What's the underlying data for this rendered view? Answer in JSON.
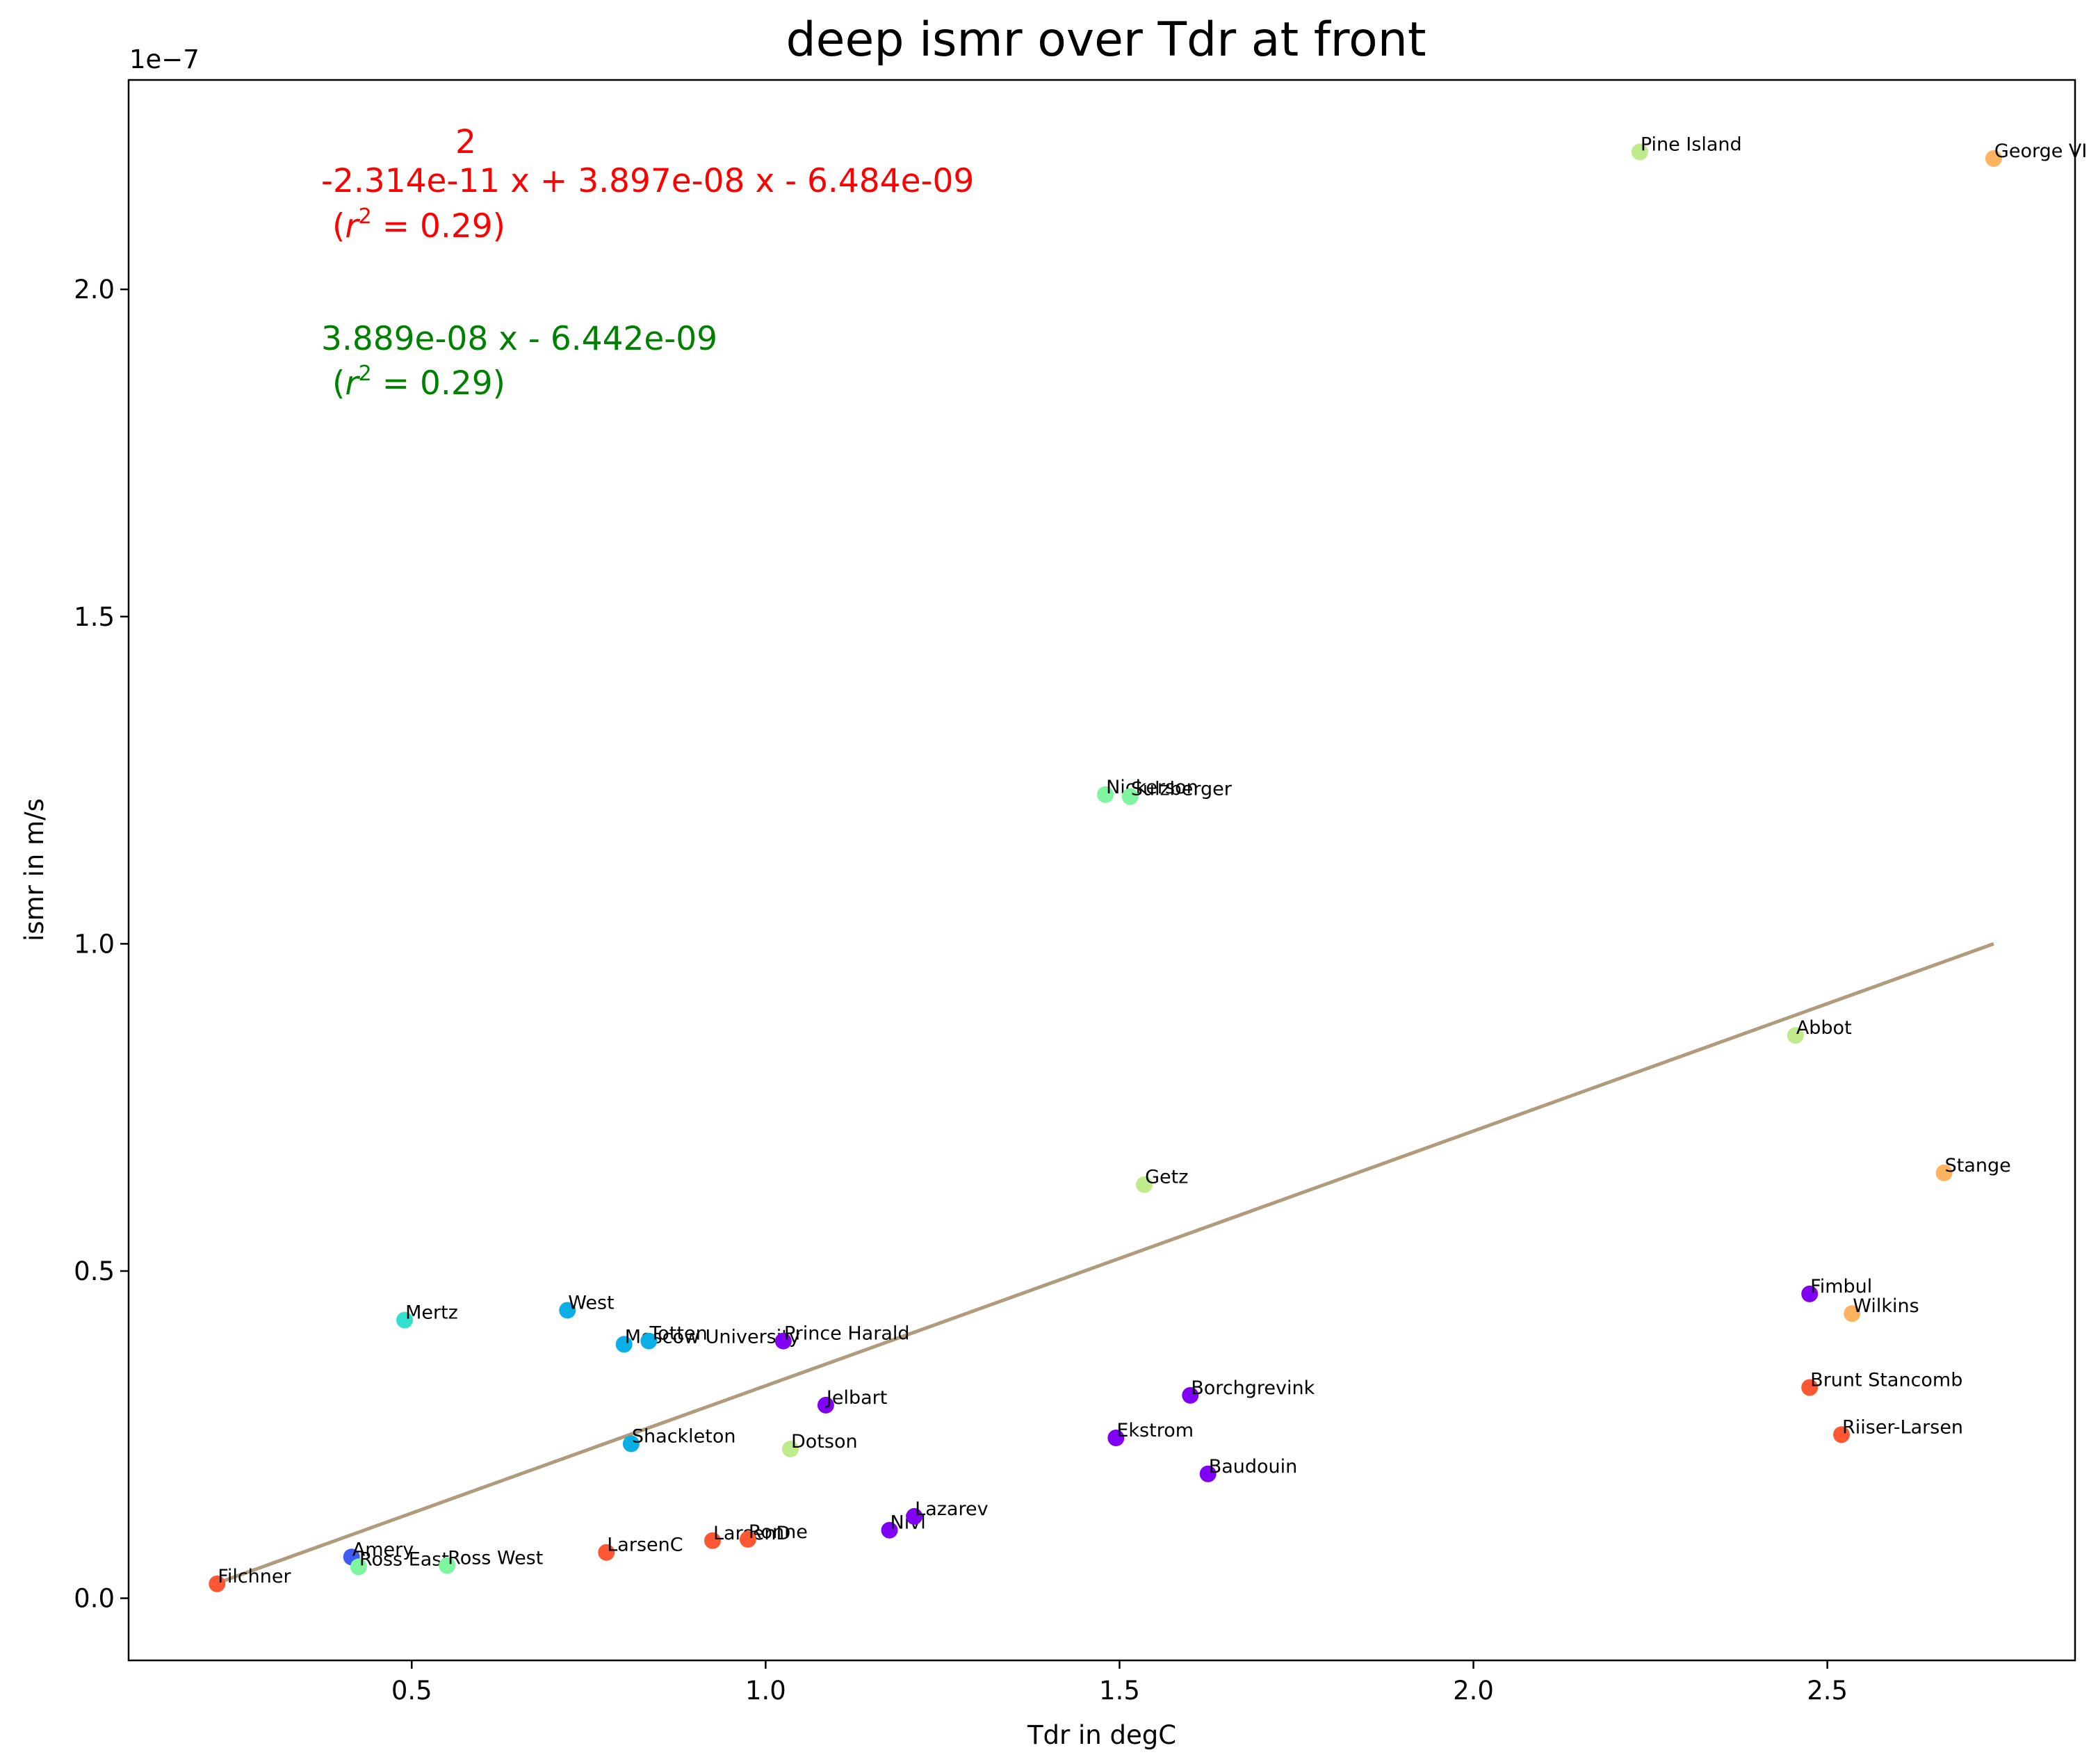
{
  "chart_data": {
    "type": "scatter",
    "title": "deep ismr over Tdr at front",
    "xlabel": "Tdr in degC",
    "ylabel": "ismr in m/s",
    "y_offset_label": "1e−7",
    "xlim": [
      0.1,
      2.85
    ],
    "ylim": [
      -0.095,
      2.32
    ],
    "x_ticks": [
      0.5,
      1.0,
      1.5,
      2.0,
      2.5
    ],
    "x_tick_labels": [
      "0.5",
      "1.0",
      "1.5",
      "2.0",
      "2.5"
    ],
    "y_ticks": [
      0.0,
      0.5,
      1.0,
      1.5,
      2.0
    ],
    "y_tick_labels": [
      "0.0",
      "0.5",
      "1.0",
      "1.5",
      "2.0"
    ],
    "grid": false,
    "points": [
      {
        "label": "Filchner",
        "x": 0.225,
        "y": 0.022,
        "color": "#ff5733"
      },
      {
        "label": "Amery",
        "x": 0.415,
        "y": 0.063,
        "color": "#3f5cf0"
      },
      {
        "label": "Ross East",
        "x": 0.425,
        "y": 0.048,
        "color": "#80f5a0"
      },
      {
        "label": "Ross West",
        "x": 0.55,
        "y": 0.05,
        "color": "#80f5a0"
      },
      {
        "label": "Mertz",
        "x": 0.49,
        "y": 0.425,
        "color": "#33e0d0"
      },
      {
        "label": "West",
        "x": 0.72,
        "y": 0.44,
        "color": "#0aafe6"
      },
      {
        "label": "Moscow University",
        "x": 0.8,
        "y": 0.388,
        "color": "#0aafe6"
      },
      {
        "label": "Totten",
        "x": 0.835,
        "y": 0.393,
        "color": "#0aafe6"
      },
      {
        "label": "Shackleton",
        "x": 0.81,
        "y": 0.236,
        "color": "#0aafe6"
      },
      {
        "label": "LarsenC",
        "x": 0.775,
        "y": 0.07,
        "color": "#ff5733"
      },
      {
        "label": "LarsenD",
        "x": 0.925,
        "y": 0.088,
        "color": "#ff5733"
      },
      {
        "label": "Ronne",
        "x": 0.975,
        "y": 0.09,
        "color": "#ff5733"
      },
      {
        "label": "Prince Harald",
        "x": 1.025,
        "y": 0.393,
        "color": "#7f00f4"
      },
      {
        "label": "Jelbart",
        "x": 1.085,
        "y": 0.295,
        "color": "#7f00f4"
      },
      {
        "label": "Dotson",
        "x": 1.035,
        "y": 0.228,
        "color": "#c0eb8c"
      },
      {
        "label": "Nivl",
        "x": 1.175,
        "y": 0.104,
        "color": "#7f00f4"
      },
      {
        "label": "Lazarev",
        "x": 1.21,
        "y": 0.125,
        "color": "#7f00f4"
      },
      {
        "label": "Nickerson",
        "x": 1.48,
        "y": 1.228,
        "color": "#80f5a0"
      },
      {
        "label": "Sulzberger",
        "x": 1.515,
        "y": 1.225,
        "color": "#80f5a0"
      },
      {
        "label": "Getz",
        "x": 1.535,
        "y": 0.632,
        "color": "#c0eb8c"
      },
      {
        "label": "Ekstrom",
        "x": 1.495,
        "y": 0.245,
        "color": "#7f00f4"
      },
      {
        "label": "Borchgrevink",
        "x": 1.6,
        "y": 0.31,
        "color": "#7f00f4"
      },
      {
        "label": "Baudouin",
        "x": 1.625,
        "y": 0.19,
        "color": "#7f00f4"
      },
      {
        "label": "Pine Island",
        "x": 2.235,
        "y": 2.21,
        "color": "#c0eb8c"
      },
      {
        "label": "George VI",
        "x": 2.735,
        "y": 2.2,
        "color": "#ffb35f"
      },
      {
        "label": "Abbot",
        "x": 2.455,
        "y": 0.86,
        "color": "#c0eb8c"
      },
      {
        "label": "Stange",
        "x": 2.665,
        "y": 0.65,
        "color": "#ffb35f"
      },
      {
        "label": "Fimbul",
        "x": 2.475,
        "y": 0.465,
        "color": "#7f00f4"
      },
      {
        "label": "Wilkins",
        "x": 2.535,
        "y": 0.435,
        "color": "#ffb35f"
      },
      {
        "label": "Brunt Stancomb",
        "x": 2.475,
        "y": 0.322,
        "color": "#ff5733"
      },
      {
        "label": "Riiser-Larsen",
        "x": 2.52,
        "y": 0.25,
        "color": "#ff5733"
      }
    ],
    "fit_line": {
      "x": [
        0.225,
        2.735
      ],
      "y": [
        0.023,
        1.0
      ],
      "color": "#b09c7c"
    },
    "annotations": [
      {
        "id": "quadratic-fit",
        "color": "#ff0000",
        "exponent": "2",
        "equation": "-2.314e-11 x + 3.897e-08 x - 6.484e-09",
        "r2_prefix": "(",
        "r2_var": "r",
        "r2_sup": "2",
        "r2_suffix": " = 0.29)"
      },
      {
        "id": "linear-fit",
        "color": "#008000",
        "equation": "3.889e-08 x - 6.442e-09",
        "r2_prefix": "(",
        "r2_var": "r",
        "r2_sup": "2",
        "r2_suffix": " = 0.29)"
      }
    ]
  }
}
